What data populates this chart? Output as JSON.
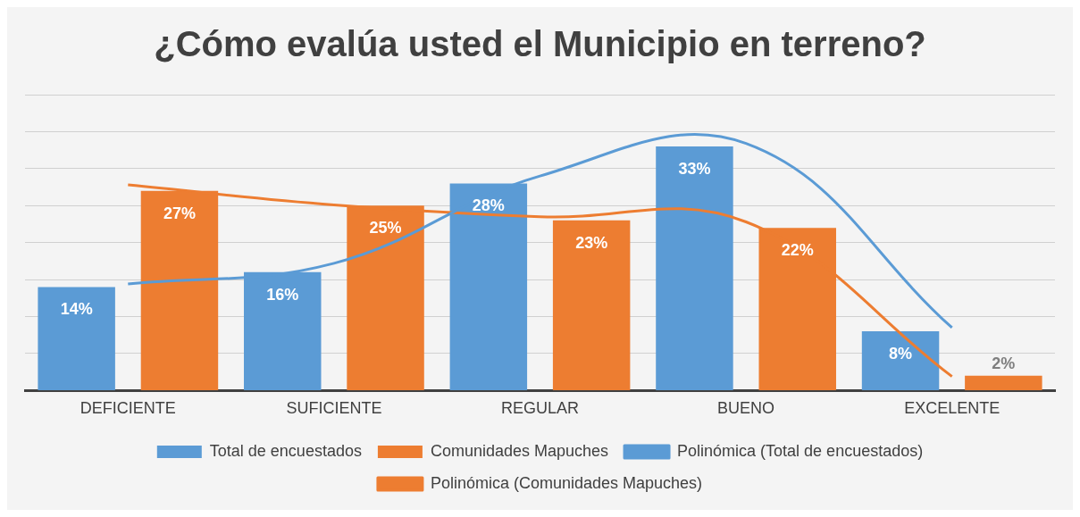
{
  "chart_data": {
    "type": "bar",
    "title": "¿Cómo evalúa usted el Municipio en terreno?",
    "categories": [
      "DEFICIENTE",
      "SUFICIENTE",
      "REGULAR",
      "BUENO",
      "EXCELENTE"
    ],
    "series": [
      {
        "name": "Total de encuestados",
        "color": "#5b9bd5",
        "values": [
          14,
          16,
          28,
          33,
          8
        ],
        "value_labels": [
          "14%",
          "16%",
          "28%",
          "33%",
          "8%"
        ]
      },
      {
        "name": "Comunidades Mapuches",
        "color": "#ed7d31",
        "values": [
          27,
          25,
          23,
          22,
          2
        ],
        "value_labels": [
          "27%",
          "25%",
          "23%",
          "22%",
          "2%"
        ]
      },
      {
        "name": "Polinómica (Total de encuestados)",
        "type": "line",
        "color": "#5b9bd5",
        "values": [
          14.4,
          17.2,
          29.0,
          33.4,
          8.5
        ]
      },
      {
        "name": "Polinómica (Comunidades Mapuches)",
        "type": "line",
        "color": "#ed7d31",
        "values": [
          27.8,
          25.1,
          23.5,
          22.8,
          1.9
        ]
      }
    ],
    "ylim": [
      0,
      40
    ],
    "yticks": [
      {
        "value": 0,
        "label": null
      },
      {
        "value": 5,
        "label": null
      },
      {
        "value": 10,
        "label": null
      },
      {
        "value": 15,
        "label": null
      },
      {
        "value": 20,
        "label": null
      },
      {
        "value": 25,
        "label": null
      },
      {
        "value": 30,
        "label": null
      },
      {
        "value": 35,
        "label": null
      },
      {
        "value": 40,
        "label": null
      }
    ],
    "tick_labels": "x",
    "grid": "y",
    "legend": "bottom",
    "marker": "none",
    "line_style": "solid"
  }
}
